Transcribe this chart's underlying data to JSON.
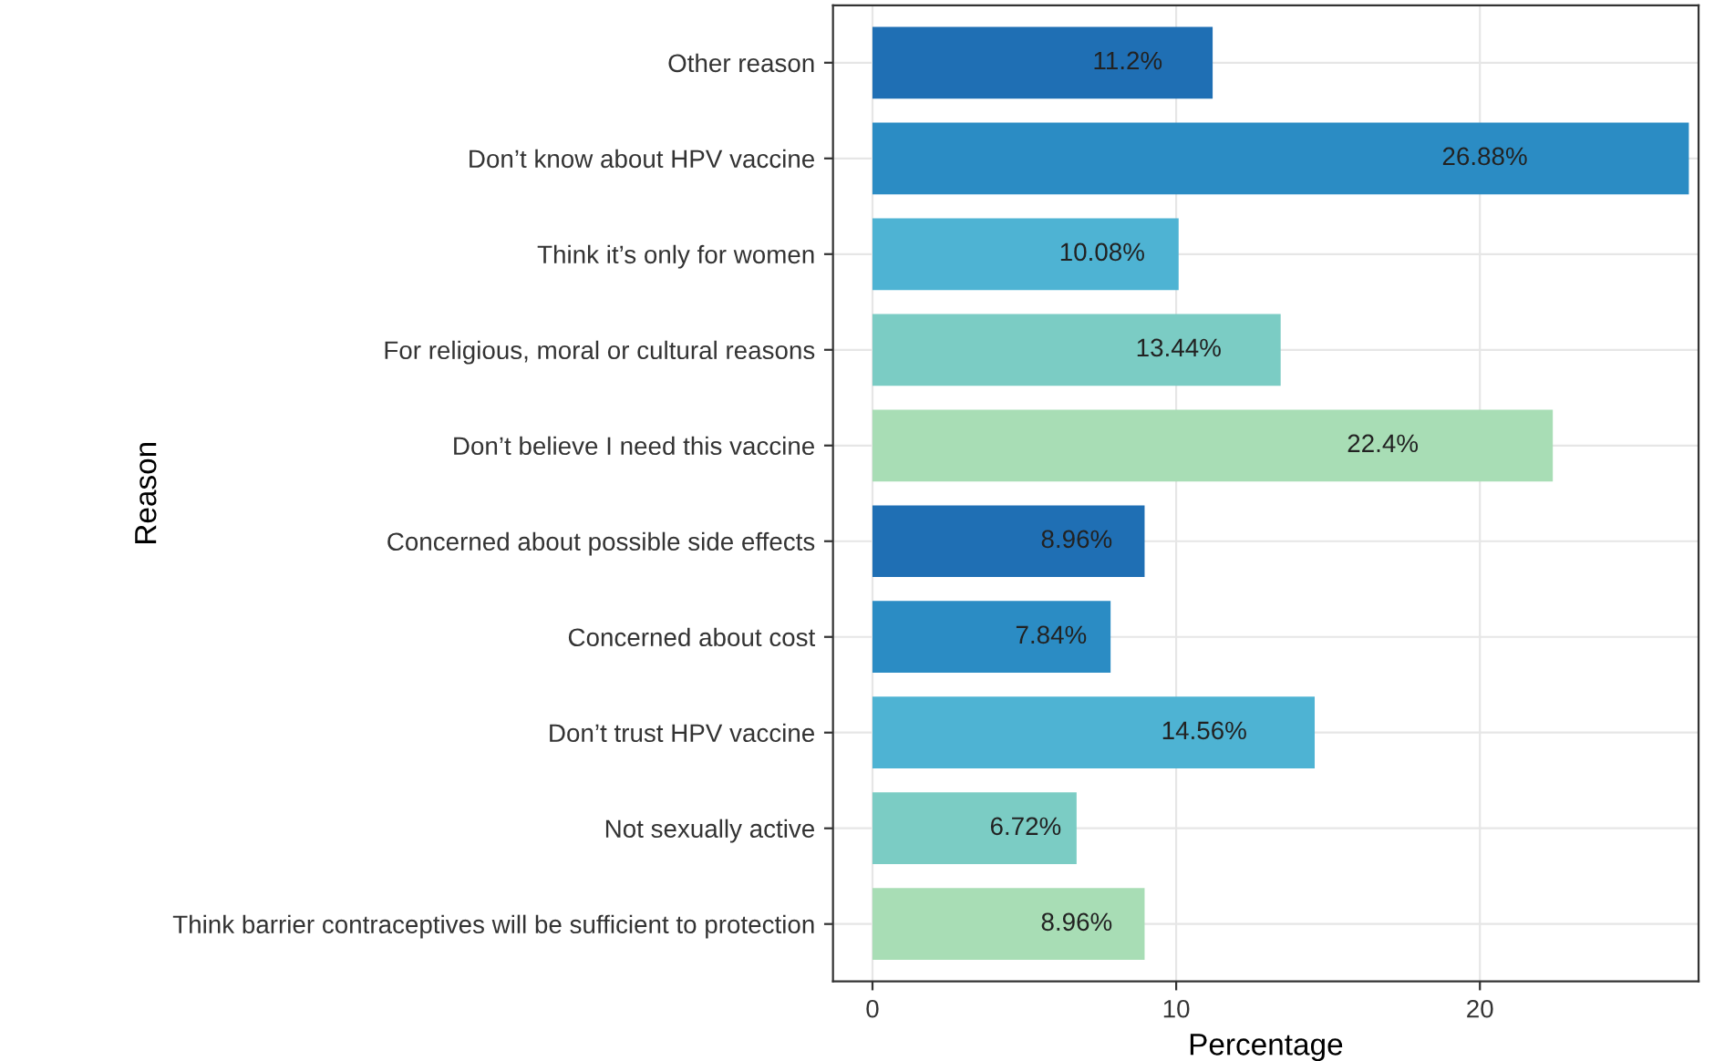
{
  "chart_data": {
    "type": "bar",
    "orientation": "horizontal",
    "xlabel": "Percentage",
    "ylabel": "Reason",
    "categories": [
      "Other reason",
      "Don’t know about HPV vaccine",
      "Think it’s only for women",
      "For religious, moral or cultural reasons",
      "Don’t believe I need this vaccine",
      "Concerned about possible side effects",
      "Concerned about cost",
      "Don’t trust HPV vaccine",
      "Not sexually active",
      "Think barrier contraceptives will be sufficient to protection"
    ],
    "values": [
      11.2,
      26.88,
      10.08,
      13.44,
      22.4,
      8.96,
      7.84,
      14.56,
      6.72,
      8.96
    ],
    "value_labels": [
      "11.2%",
      "26.88%",
      "10.08%",
      "13.44%",
      "22.4%",
      "8.96%",
      "7.84%",
      "14.56%",
      "6.72%",
      "8.96%"
    ],
    "colors": [
      "#1f6fb4",
      "#2b8cc4",
      "#4eb3d3",
      "#7bccc4",
      "#a8ddb5",
      "#1f6fb4",
      "#2b8cc4",
      "#4eb3d3",
      "#7bccc4",
      "#a8ddb5"
    ],
    "xlim": [
      -1.3,
      27.2
    ],
    "xticks": [
      0,
      10,
      20
    ],
    "grid": true
  }
}
